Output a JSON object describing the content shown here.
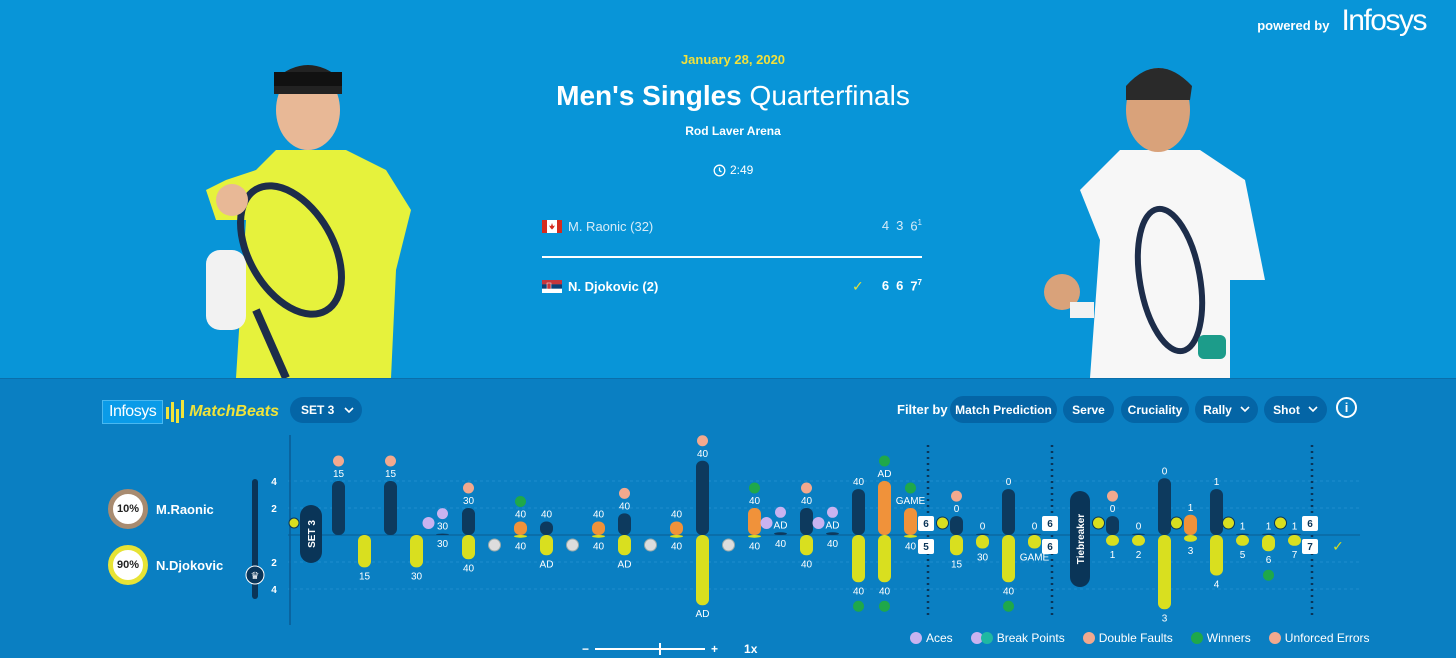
{
  "header": {
    "powered_by": "powered by",
    "brand": "Infosys",
    "date": "January 28, 2020",
    "title_bold": "Men's Singles",
    "title_rest": "Quarterfinals",
    "venue": "Rod Laver Arena",
    "duration": "2:49"
  },
  "players": [
    {
      "name": "M. Raonic (32)",
      "country": "Canada",
      "sets": [
        "4",
        "3",
        "6"
      ],
      "tiebreak": "1",
      "winner": false
    },
    {
      "name": "N. Djokovic (2)",
      "country": "Serbia",
      "sets": [
        "6",
        "6",
        "7"
      ],
      "tiebreak": "7",
      "winner": true
    }
  ],
  "matchbeats": {
    "brand": "Infosys",
    "product": "MatchBeats",
    "set_selector": "SET 3",
    "filter_label": "Filter by",
    "filters": [
      "Match Prediction",
      "Serve",
      "Cruciality",
      "Rally",
      "Shot"
    ],
    "prediction": [
      {
        "name": "M.Raonic",
        "pct": "10%"
      },
      {
        "name": "N.Djokovic",
        "pct": "90%"
      }
    ],
    "axis_ticks": [
      "4",
      "2",
      "2",
      "4"
    ],
    "set_label": "SET 3",
    "tiebreaker_label": "Tiebreaker",
    "zoom_minus": "−",
    "zoom_plus": "+",
    "zoom_level": "1x",
    "legend": [
      "Aces",
      "Break Points",
      "Double Faults",
      "Winners",
      "Unforced Errors"
    ]
  },
  "colors": {
    "top_bg": "#0895d8",
    "panel_bg": "#0a7fc2",
    "raonic_bar": "#0d3a5e",
    "djokovic_bar": "#d9df1f",
    "deuce_bar": "#f0923a",
    "winner_icon": "#1fa84a",
    "error_icon": "#f2a98e",
    "ace_icon": "#c9b3f0"
  },
  "games": [
    {
      "type": "normal",
      "points": [
        {
          "up": 4,
          "upLbl": "15",
          "upIcon": "error"
        },
        {
          "dn": 2.4,
          "dnLbl": "15"
        },
        {
          "up": 4,
          "upLbl": "15",
          "upIcon": "error"
        },
        {
          "dn": 2.4,
          "dnLbl": "30"
        },
        {
          "up": 0.1,
          "upLbl": "30",
          "upIcon": "ace",
          "dnLbl": "30",
          "marker": "ace"
        },
        {
          "up": 2,
          "upLbl": "30",
          "upIcon": "error",
          "dn": 1.8,
          "dnLbl": "40"
        },
        {
          "ball": "up"
        }
      ]
    },
    {
      "type": "normal",
      "points": [
        {
          "up": 1,
          "upLbl": "40",
          "upIcon": "winner",
          "deuce": true,
          "dn": 0.2,
          "dnLbl": "40"
        },
        {
          "up": 1,
          "upLbl": "40",
          "dn": 1.5,
          "dnLbl": "AD"
        },
        {
          "ball": "dn"
        },
        {
          "up": 1,
          "upLbl": "40",
          "deuce": true,
          "dn": 0.2,
          "dnLbl": "40"
        },
        {
          "up": 1.6,
          "upLbl": "40",
          "upIcon": "error",
          "dn": 1.5,
          "dnLbl": "AD"
        },
        {
          "ball": "dn"
        }
      ]
    },
    {
      "type": "normal",
      "points": [
        {
          "up": 1,
          "upLbl": "40",
          "deuce": true,
          "dn": 0.2,
          "dnLbl": "40"
        },
        {
          "up": 5.5,
          "upLbl": "40",
          "upIcon": "error",
          "dn": 5.2,
          "dnLbl": "AD"
        },
        {
          "ball": "dn"
        },
        {
          "up": 2,
          "upLbl": "40",
          "upIcon": "winner",
          "deuce": true,
          "dn": 0.2,
          "dnLbl": "40"
        },
        {
          "up": 0.2,
          "upLbl": "AD",
          "upIcon": "ace",
          "dnLbl": "40",
          "marker": "bp"
        },
        {
          "up": 2,
          "upLbl": "40",
          "upIcon": "error",
          "dn": 1.5,
          "dnLbl": "40"
        },
        {
          "up": 0.2,
          "upLbl": "AD",
          "upIcon": "ace",
          "dnLbl": "40",
          "marker": "bp"
        },
        {
          "up": 3.4,
          "upLbl": "40",
          "dn": 3.5,
          "dnLbl": "40",
          "dnIcon": "winner"
        },
        {
          "up": 4,
          "upLbl": "AD",
          "upIcon": "winner",
          "deuce": true,
          "dn": 3.5,
          "dnLbl": "40",
          "dnIcon": "winner"
        },
        {
          "up": 2,
          "upLbl": "GAME",
          "upIcon": "winner",
          "deuce": true,
          "dn": 0.2,
          "dnLbl": "40"
        }
      ],
      "score": [
        "6",
        "5"
      ]
    },
    {
      "type": "normal",
      "points": [
        {
          "up": 1.4,
          "upLbl": "0",
          "upIcon": "error",
          "dn": 1.5,
          "dnLbl": "15",
          "marker": "ball"
        },
        {
          "up": 0.1,
          "upLbl": "0",
          "dn": 1,
          "dnLbl": "30"
        },
        {
          "up": 3.4,
          "upLbl": "0",
          "dn": 3.5,
          "dnLbl": "40",
          "dnIcon": "winner"
        },
        {
          "up": 0.1,
          "upLbl": "0",
          "dn": 1,
          "dnLbl": "GAME"
        }
      ],
      "score": [
        "6",
        "6"
      ]
    },
    {
      "type": "tiebreak",
      "points": [
        {
          "up": 1.4,
          "upLbl": "0",
          "upIcon": "error",
          "dn": 0.8,
          "dnLbl": "1",
          "marker": "ball"
        },
        {
          "up": 0.1,
          "upLbl": "0",
          "dn": 0.8,
          "dnLbl": "2"
        },
        {
          "up": 4.2,
          "upLbl": "0",
          "dn": 5.5,
          "dnLbl": "3"
        },
        {
          "up": 1.5,
          "upLbl": "1",
          "deuce": true,
          "dn": 0.5,
          "dnLbl": "3",
          "marker": "ball"
        },
        {
          "up": 3.4,
          "upLbl": "1",
          "dn": 3,
          "dnLbl": "4"
        },
        {
          "up": 0.1,
          "upLbl": "1",
          "dn": 0.8,
          "dnLbl": "5",
          "marker": "ball"
        },
        {
          "up": 0.1,
          "upLbl": "1",
          "dn": 1.2,
          "dnLbl": "6",
          "dnIcon": "winner"
        },
        {
          "up": 0.1,
          "upLbl": "1",
          "dn": 0.8,
          "dnLbl": "7",
          "marker": "ball"
        }
      ],
      "score": [
        "6",
        "7"
      ]
    }
  ]
}
